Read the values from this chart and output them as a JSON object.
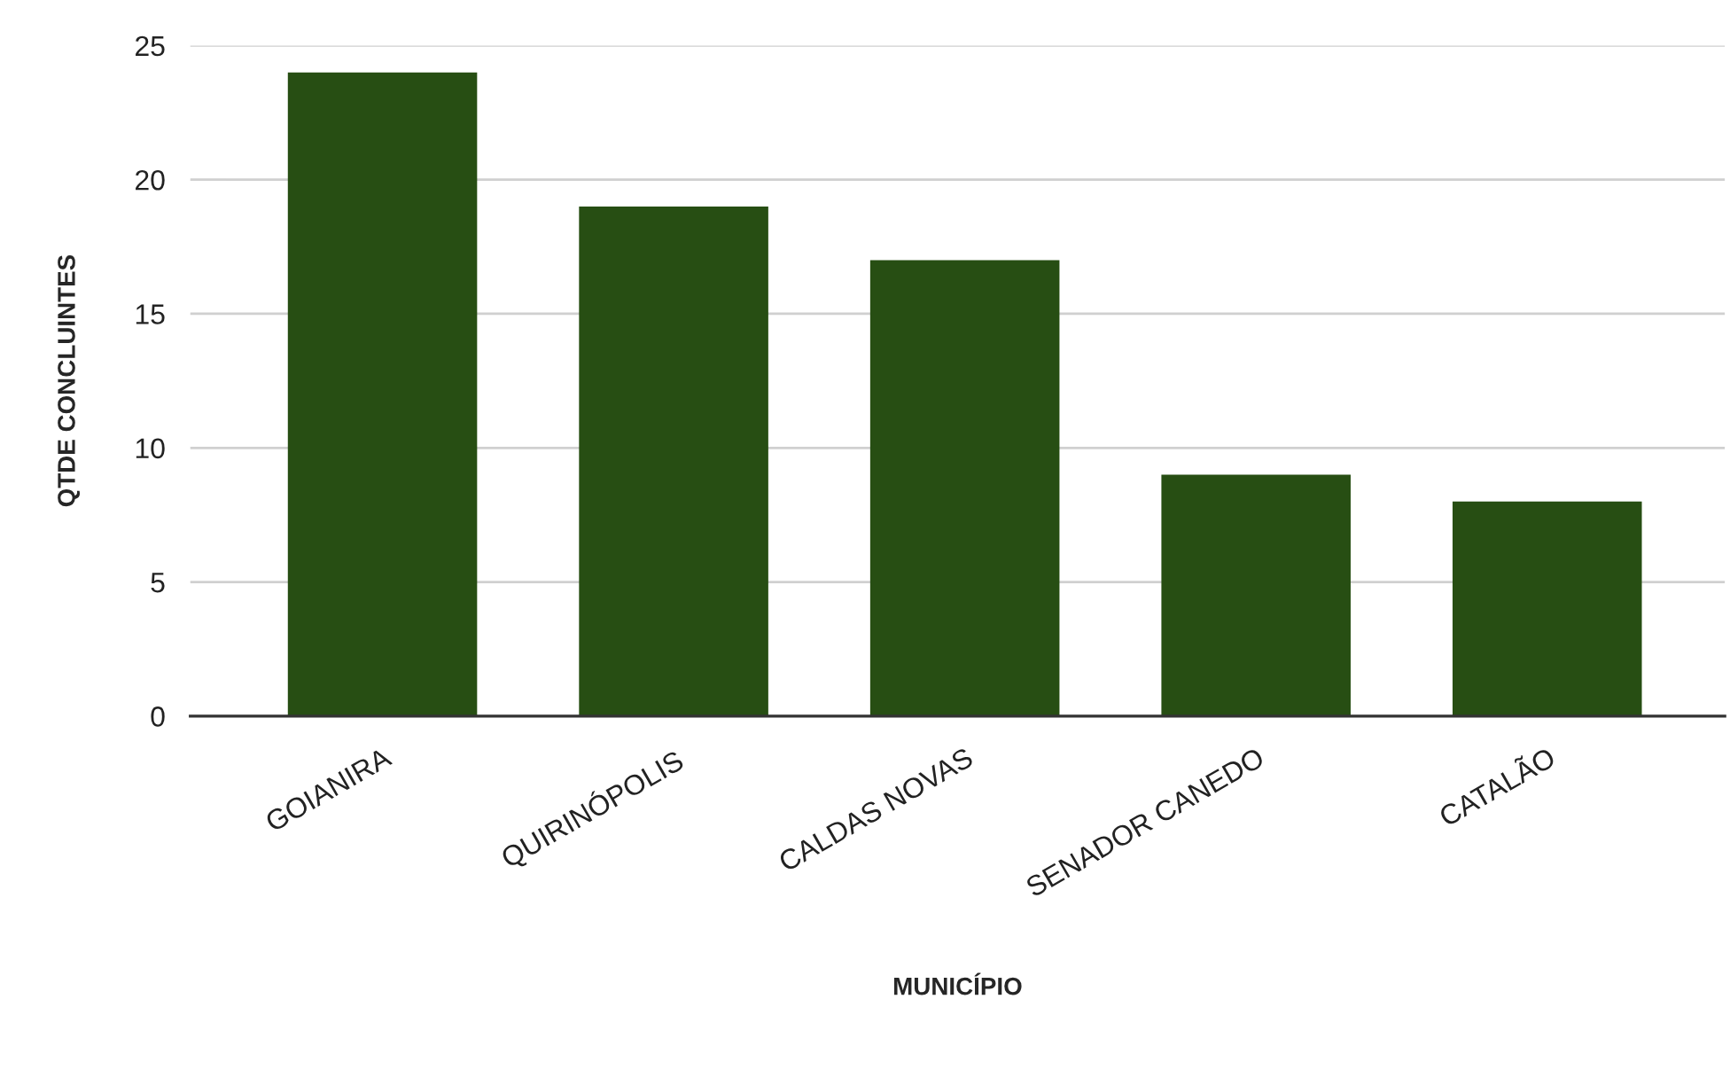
{
  "chart_data": {
    "type": "bar",
    "xlabel": "MUNICÍPIO",
    "ylabel": "QTDE CONCLUINTES",
    "categories": [
      "GOIANIRA",
      "QUIRINÓPOLIS",
      "CALDAS NOVAS",
      "SENADOR CANEDO",
      "CATALÃO"
    ],
    "values": [
      24,
      19,
      17,
      9,
      8
    ],
    "color": "#274e13",
    "ylim": [
      0,
      25
    ],
    "yticks": [
      0,
      5,
      10,
      15,
      20,
      25
    ],
    "grid": "y"
  }
}
